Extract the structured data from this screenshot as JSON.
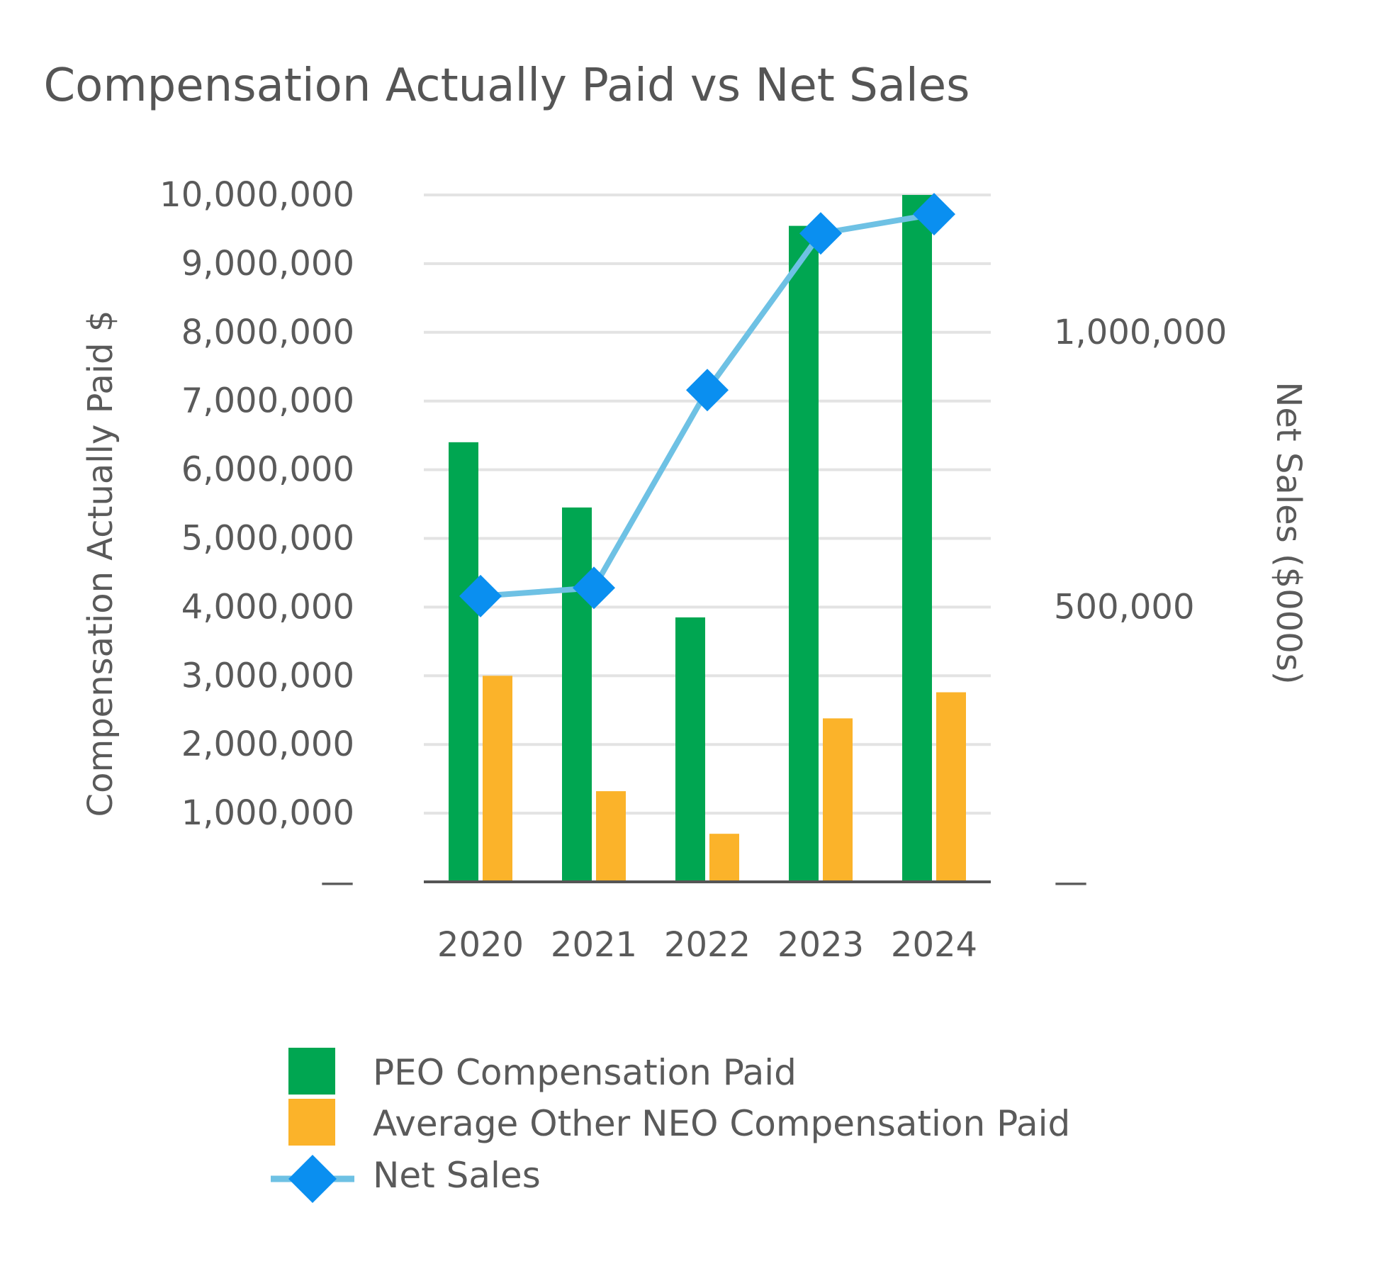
{
  "chart_data": {
    "type": "bar",
    "title": "Compensation Actually Paid vs Net Sales",
    "categories": [
      "2020",
      "2021",
      "2022",
      "2023",
      "2024"
    ],
    "ylabel": "Compensation Actually Paid $",
    "y2label": "Net Sales ($000s)",
    "ylim": [
      0,
      10000000
    ],
    "y2lim": [
      0,
      1250000
    ],
    "yticks": [
      0,
      1000000,
      2000000,
      3000000,
      4000000,
      5000000,
      6000000,
      7000000,
      8000000,
      9000000,
      10000000
    ],
    "yticklabels": [
      "—",
      "1,000,000",
      "2,000,000",
      "3,000,000",
      "4,000,000",
      "5,000,000",
      "6,000,000",
      "7,000,000",
      "8,000,000",
      "9,000,000",
      "10,000,000"
    ],
    "y2ticks": [
      0,
      500000,
      1000000
    ],
    "y2ticklabels": [
      "—",
      "500,000",
      "1,000,000"
    ],
    "grid": true,
    "legend_position": "bottom",
    "series": [
      {
        "name": "PEO Compensation Paid",
        "type": "bar",
        "axis": "left",
        "color": "#00a651",
        "values": [
          6400000,
          5450000,
          3850000,
          9550000,
          10000000
        ]
      },
      {
        "name": "Average Other NEO Compensation Paid",
        "type": "bar",
        "axis": "left",
        "color": "#fbb32a",
        "values": [
          3000000,
          1320000,
          700000,
          2380000,
          2760000
        ]
      },
      {
        "name": "Net Sales",
        "type": "line",
        "axis": "right",
        "color": "#6ec1e4",
        "marker_color": "#0a8ff0",
        "values": [
          520000,
          535000,
          895000,
          1180000,
          1215000
        ]
      }
    ]
  }
}
